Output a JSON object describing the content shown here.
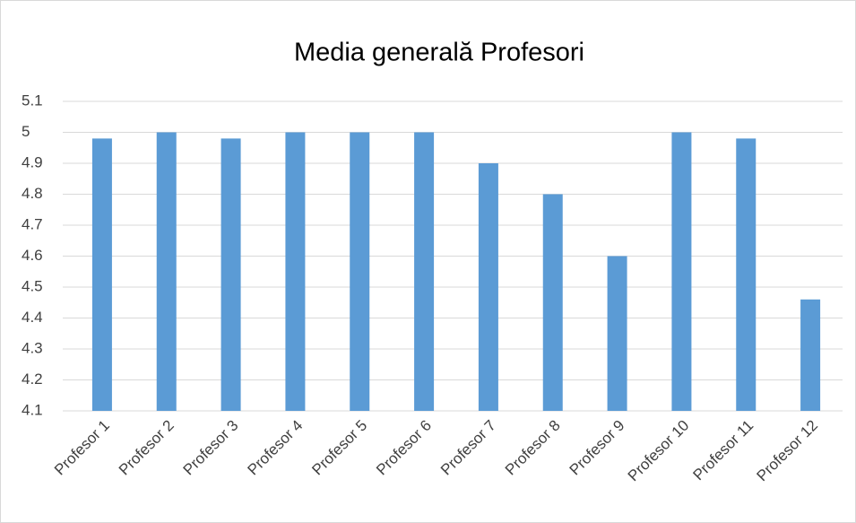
{
  "chart_data": {
    "type": "bar",
    "title": "Media generală Profesori",
    "categories": [
      "Profesor 1",
      "Profesor 2",
      "Profesor 3",
      "Profesor 4",
      "Profesor 5",
      "Profesor 6",
      "Profesor 7",
      "Profesor 8",
      "Profesor 9",
      "Profesor 10",
      "Profesor 11",
      "Profesor 12"
    ],
    "values": [
      4.98,
      5,
      4.98,
      5,
      5,
      5,
      4.9,
      4.8,
      4.6,
      5,
      4.98,
      4.46
    ],
    "color": "#5b9bd5",
    "ylim": [
      4.1,
      5.1
    ],
    "yticks": [
      4.1,
      4.2,
      4.3,
      4.4,
      4.5,
      4.6,
      4.7,
      4.8,
      4.9,
      5,
      5.1
    ],
    "grid": true
  }
}
